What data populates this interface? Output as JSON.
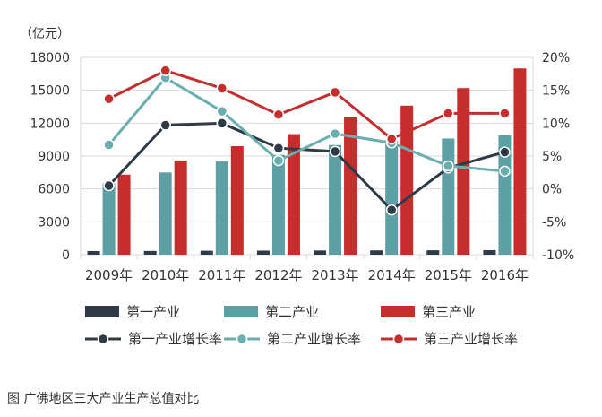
{
  "caption": "图 广佛地区三大产业生产总值对比",
  "chart_data": {
    "type": "bar",
    "unit_label": "（亿元）",
    "categories": [
      "2009年",
      "2010年",
      "2011年",
      "2012年",
      "2013年",
      "2014年",
      "2015年",
      "2016年"
    ],
    "y_left": {
      "min": 0,
      "max": 18000,
      "ticks": [
        "0",
        "3000",
        "6000",
        "9000",
        "12000",
        "15000",
        "18000"
      ]
    },
    "y_right": {
      "min": -10,
      "max": 20,
      "ticks": [
        "-10%",
        "-5%",
        "0%",
        "5%",
        "10%",
        "15%",
        "20%"
      ]
    },
    "grid": true,
    "legend_position": "bottom",
    "bar_series": [
      {
        "name": "第一产业",
        "color": "#2e3b46",
        "values": [
          330,
          340,
          360,
          370,
          380,
          390,
          400,
          410
        ]
      },
      {
        "name": "第二产业",
        "color": "#5e9ea5",
        "values": [
          6500,
          7500,
          8500,
          9100,
          10000,
          10400,
          10600,
          10900
        ]
      },
      {
        "name": "第三产业",
        "color": "#c62e2e",
        "values": [
          7300,
          8600,
          9900,
          11000,
          12600,
          13600,
          15200,
          17000
        ]
      }
    ],
    "line_series": [
      {
        "name": "第一产业增长率",
        "color": "#2e3b46",
        "values": [
          0.5,
          9.7,
          10.0,
          6.2,
          5.7,
          -3.2,
          3.2,
          5.6
        ]
      },
      {
        "name": "第二产业增长率",
        "color": "#6aaeb0",
        "values": [
          6.7,
          16.9,
          11.8,
          4.3,
          8.4,
          7.0,
          3.5,
          2.7
        ]
      },
      {
        "name": "第三产业增长率",
        "color": "#c62e2e",
        "values": [
          13.7,
          18.0,
          15.3,
          11.3,
          14.7,
          7.6,
          11.5,
          11.5
        ]
      }
    ]
  }
}
